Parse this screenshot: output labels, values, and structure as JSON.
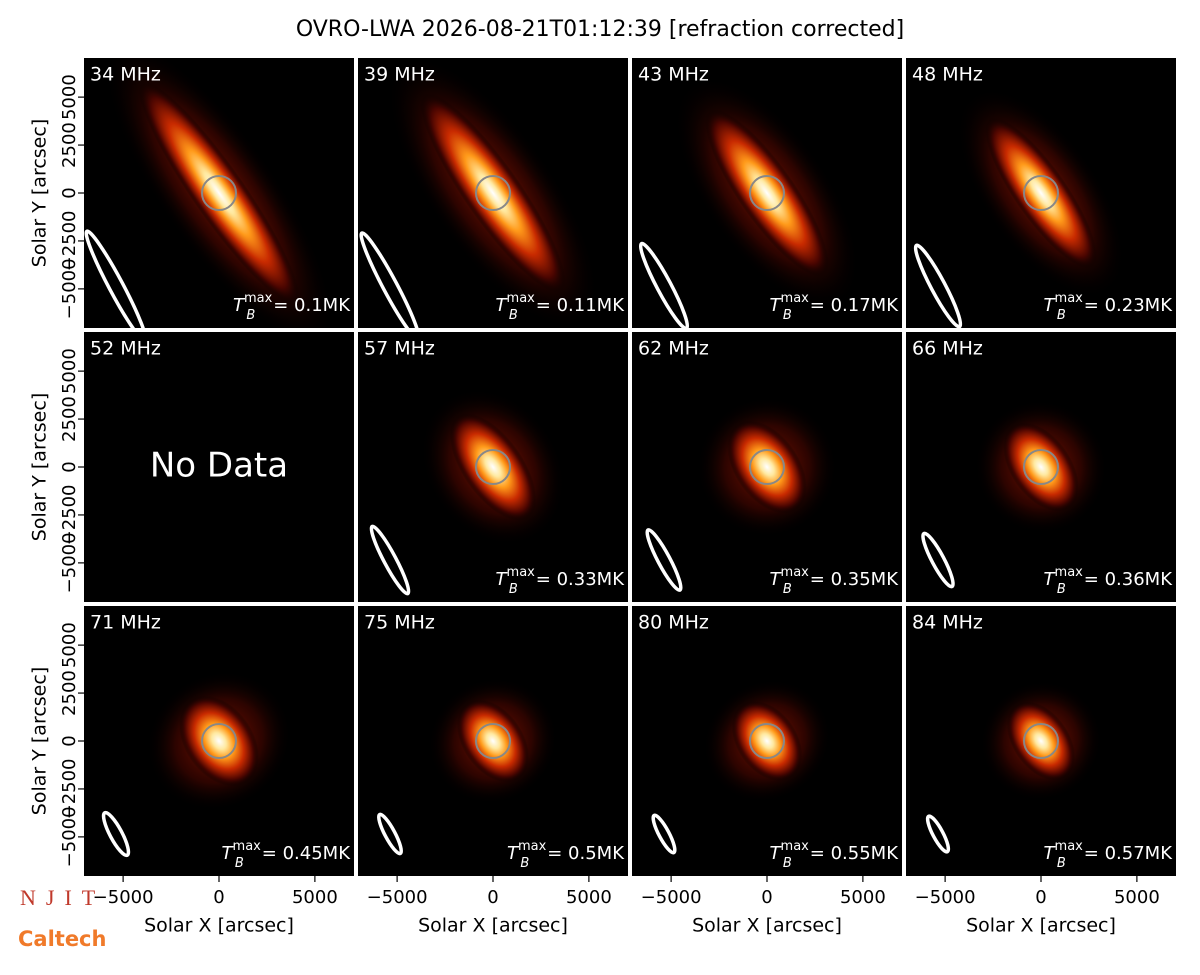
{
  "title": "OVRO-LWA 2026-08-21T01:12:39 [refraction corrected]",
  "logos": [
    "NJIT",
    "Caltech"
  ],
  "chart_data": [
    {
      "type": "image",
      "label": "34 MHz",
      "annotation": {
        "symbol": "T",
        "sub": "B",
        "sup": "max",
        "text": "= 0.1MK"
      },
      "xlim": [
        -7040,
        7040
      ],
      "ylim": [
        -7040,
        7040
      ],
      "ylabel": "Solar Y [arcsec]",
      "yticks": [
        {
          "value": -5000,
          "label": "−5000"
        },
        {
          "value": -2500,
          "label": "−2500"
        },
        0,
        2500,
        5000
      ]
    },
    {
      "type": "image",
      "label": "39 MHz",
      "annotation": {
        "symbol": "T",
        "sub": "B",
        "sup": "max",
        "text": "= 0.11MK"
      },
      "xlim": [
        -7040,
        7040
      ],
      "ylim": [
        -7040,
        7040
      ]
    },
    {
      "type": "image",
      "label": "43 MHz",
      "annotation": {
        "symbol": "T",
        "sub": "B",
        "sup": "max",
        "text": "= 0.17MK"
      },
      "xlim": [
        -7040,
        7040
      ],
      "ylim": [
        -7040,
        7040
      ]
    },
    {
      "type": "image",
      "label": "48 MHz",
      "annotation": {
        "symbol": "T",
        "sub": "B",
        "sup": "max",
        "text": "= 0.23MK"
      },
      "xlim": [
        -7040,
        7040
      ],
      "ylim": [
        -7040,
        7040
      ]
    },
    {
      "type": "image",
      "label": "52 MHz",
      "note": "No Data",
      "xlim": [
        -7040,
        7040
      ],
      "ylim": [
        -7040,
        7040
      ],
      "ylabel": "Solar Y [arcsec]",
      "yticks": [
        {
          "value": -5000,
          "label": "−5000"
        },
        {
          "value": -2500,
          "label": "−2500"
        },
        0,
        2500,
        5000
      ]
    },
    {
      "type": "image",
      "label": "57 MHz",
      "annotation": {
        "symbol": "T",
        "sub": "B",
        "sup": "max",
        "text": "= 0.33MK"
      },
      "xlim": [
        -7040,
        7040
      ],
      "ylim": [
        -7040,
        7040
      ]
    },
    {
      "type": "image",
      "label": "62 MHz",
      "annotation": {
        "symbol": "T",
        "sub": "B",
        "sup": "max",
        "text": "= 0.35MK"
      },
      "xlim": [
        -7040,
        7040
      ],
      "ylim": [
        -7040,
        7040
      ]
    },
    {
      "type": "image",
      "label": "66 MHz",
      "annotation": {
        "symbol": "T",
        "sub": "B",
        "sup": "max",
        "text": "= 0.36MK"
      },
      "xlim": [
        -7040,
        7040
      ],
      "ylim": [
        -7040,
        7040
      ]
    },
    {
      "type": "image",
      "label": "71 MHz",
      "annotation": {
        "symbol": "T",
        "sub": "B",
        "sup": "max",
        "text": "= 0.45MK"
      },
      "xlim": [
        -7040,
        7040
      ],
      "ylim": [
        -7040,
        7040
      ],
      "ylabel": "Solar Y [arcsec]",
      "yticks": [
        {
          "value": -5000,
          "label": "−5000"
        },
        {
          "value": -2500,
          "label": "−2500"
        },
        0,
        2500,
        5000
      ],
      "xlabel": "Solar X [arcsec]",
      "xticks": [
        {
          "value": -5000,
          "label": "−5000"
        },
        0,
        5000
      ]
    },
    {
      "type": "image",
      "label": "75 MHz",
      "annotation": {
        "symbol": "T",
        "sub": "B",
        "sup": "max",
        "text": "= 0.5MK"
      },
      "xlim": [
        -7040,
        7040
      ],
      "ylim": [
        -7040,
        7040
      ],
      "xlabel": "Solar X [arcsec]",
      "xticks": [
        {
          "value": -5000,
          "label": "−5000"
        },
        0,
        5000
      ]
    },
    {
      "type": "image",
      "label": "80 MHz",
      "annotation": {
        "symbol": "T",
        "sub": "B",
        "sup": "max",
        "text": "= 0.55MK"
      },
      "xlim": [
        -7040,
        7040
      ],
      "ylim": [
        -7040,
        7040
      ],
      "xlabel": "Solar X [arcsec]",
      "xticks": [
        {
          "value": -5000,
          "label": "−5000"
        },
        0,
        5000
      ]
    },
    {
      "type": "image",
      "label": "84 MHz",
      "annotation": {
        "symbol": "T",
        "sub": "B",
        "sup": "max",
        "text": "= 0.57MK"
      },
      "xlim": [
        -7040,
        7040
      ],
      "ylim": [
        -7040,
        7040
      ],
      "xlabel": "Solar X [arcsec]",
      "xticks": [
        {
          "value": -5000,
          "label": "−5000"
        },
        0,
        5000
      ]
    }
  ]
}
